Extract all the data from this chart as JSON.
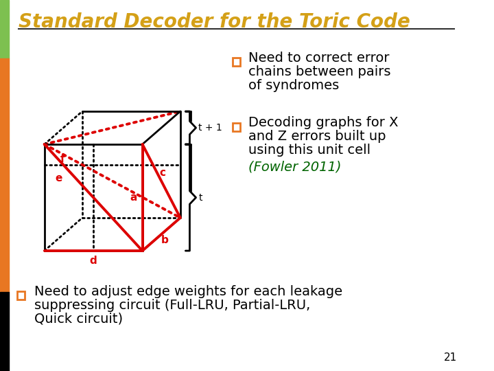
{
  "title": "Standard Decoder for the Toric Code",
  "title_color": "#D4A017",
  "title_fontsize": 20,
  "bg_color": "#FFFFFF",
  "left_bar_colors": [
    "#7DC050",
    "#E87722",
    "#000000"
  ],
  "bullet_color": "#E87722",
  "bullet1_line1": "Need to correct error",
  "bullet1_line2": "chains between pairs",
  "bullet1_line3": "of syndromes",
  "bullet2_line1": "Decoding graphs for X",
  "bullet2_line2": "and Z errors built up",
  "bullet2_line3": "using this unit cell",
  "citation": "(Fowler 2011)",
  "citation_color": "#006400",
  "bullet3_line1": "Need to adjust edge weights for each leakage",
  "bullet3_line2": "suppressing circuit (Full-LRU, Partial-LRU,",
  "bullet3_line3": "Quick circuit)",
  "slide_number": "21",
  "text_fontsize": 14,
  "label_fontsize": 11,
  "black_edge_color": "#000000",
  "red_edge_color": "#DD0000",
  "label_color_red": "#DD0000"
}
